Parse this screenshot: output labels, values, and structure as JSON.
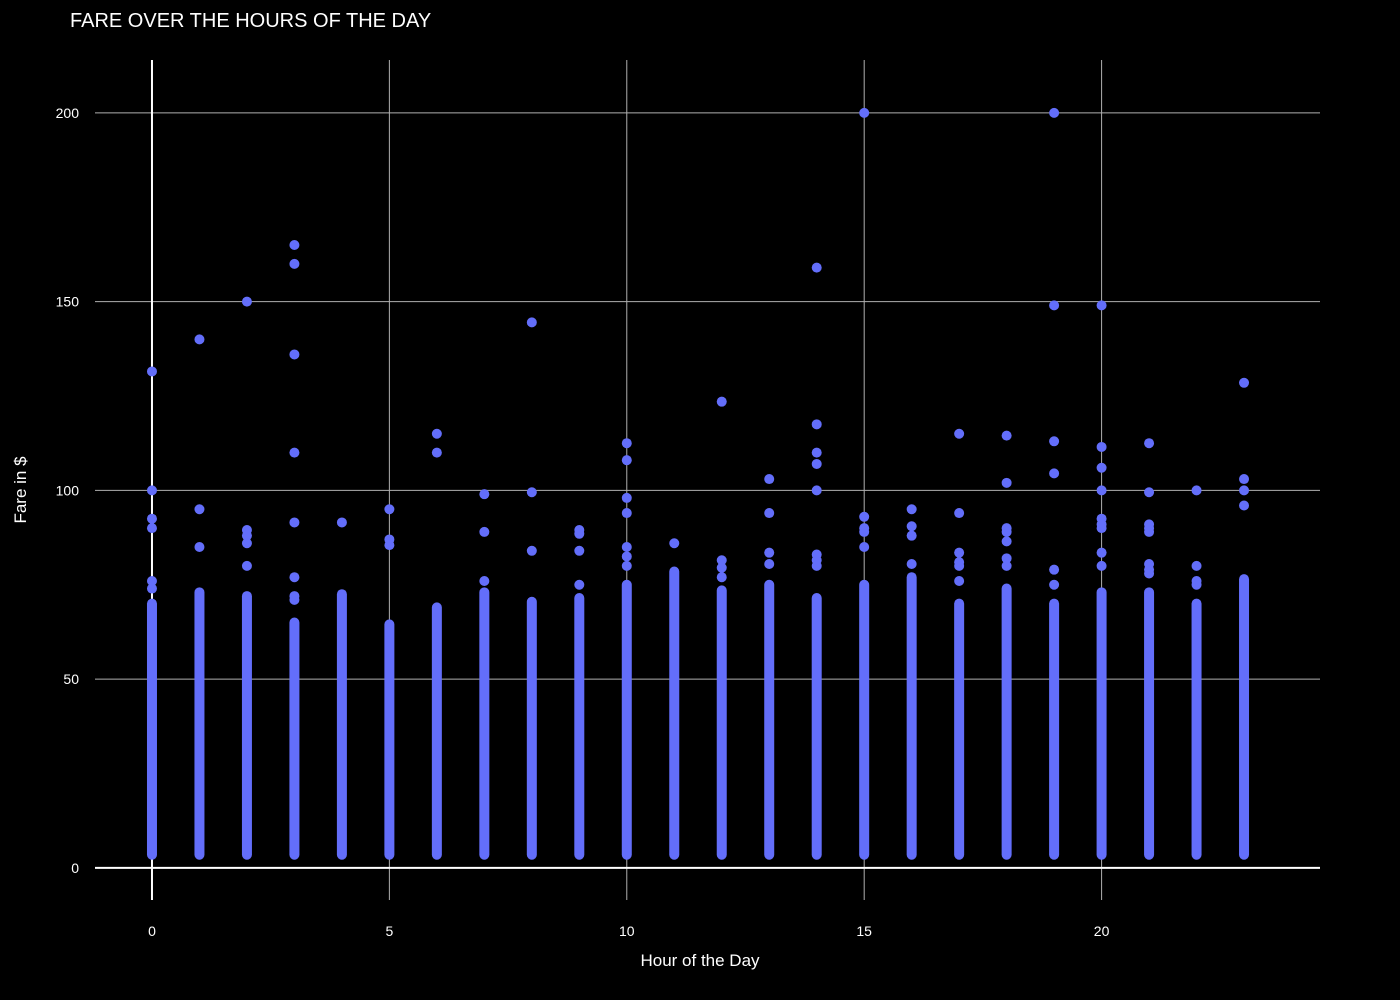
{
  "chart_data": {
    "type": "scatter",
    "title": "FARE OVER THE HOURS OF THE DAY",
    "xlabel": "Hour of the Day",
    "ylabel": "Fare in $",
    "xlim": [
      -1.2,
      24.6
    ],
    "ylim": [
      -8.5,
      214
    ],
    "xticks": [
      0,
      5,
      10,
      15,
      20
    ],
    "yticks": [
      0,
      50,
      100,
      150,
      200
    ],
    "grid": true,
    "marker_color": "#636efa",
    "background_color": "#000000",
    "grid_color": "#b0b0b0",
    "series": [
      {
        "hours": [
          {
            "x": 0,
            "max_dense": 70,
            "outliers": [
              131.5,
              100,
              92.5,
              90,
              76,
              74
            ]
          },
          {
            "x": 1,
            "max_dense": 73,
            "outliers": [
              140,
              95,
              85
            ]
          },
          {
            "x": 2,
            "max_dense": 72,
            "outliers": [
              150,
              89.5,
              88,
              86,
              80
            ]
          },
          {
            "x": 3,
            "max_dense": 65,
            "outliers": [
              165,
              160,
              136,
              110,
              91.5,
              77,
              72,
              71
            ]
          },
          {
            "x": 4,
            "max_dense": 72.5,
            "outliers": [
              91.5
            ]
          },
          {
            "x": 5,
            "max_dense": 64.5,
            "outliers": [
              95,
              87,
              85.5
            ]
          },
          {
            "x": 6,
            "max_dense": 69,
            "outliers": [
              115,
              110
            ]
          },
          {
            "x": 7,
            "max_dense": 73,
            "outliers": [
              99,
              89,
              76
            ]
          },
          {
            "x": 8,
            "max_dense": 70.5,
            "outliers": [
              144.5,
              99.5,
              84
            ]
          },
          {
            "x": 9,
            "max_dense": 71.5,
            "outliers": [
              89.5,
              88.5,
              84,
              75
            ]
          },
          {
            "x": 10,
            "max_dense": 75,
            "outliers": [
              112.5,
              108,
              98,
              94,
              85,
              82.5,
              80
            ]
          },
          {
            "x": 11,
            "max_dense": 78.5,
            "outliers": [
              86
            ]
          },
          {
            "x": 12,
            "max_dense": 73.5,
            "outliers": [
              123.5,
              81.5,
              79.5,
              77
            ]
          },
          {
            "x": 13,
            "max_dense": 75,
            "outliers": [
              103,
              94,
              83.5,
              80.5
            ]
          },
          {
            "x": 14,
            "max_dense": 71.5,
            "outliers": [
              159,
              117.5,
              110,
              107,
              100,
              83,
              81.5,
              80
            ]
          },
          {
            "x": 15,
            "max_dense": 75,
            "outliers": [
              200,
              93,
              90,
              89,
              85
            ]
          },
          {
            "x": 16,
            "max_dense": 77,
            "outliers": [
              95,
              90.5,
              88,
              80.5
            ]
          },
          {
            "x": 17,
            "max_dense": 70,
            "outliers": [
              115,
              94,
              83.5,
              81,
              80,
              76
            ]
          },
          {
            "x": 18,
            "max_dense": 74,
            "outliers": [
              114.5,
              102,
              90,
              89,
              86.5,
              82,
              80
            ]
          },
          {
            "x": 19,
            "max_dense": 70,
            "outliers": [
              200,
              149,
              113,
              104.5,
              79,
              75
            ]
          },
          {
            "x": 20,
            "max_dense": 73,
            "outliers": [
              149,
              111.5,
              106,
              100,
              92.5,
              91,
              90,
              83.5,
              80
            ]
          },
          {
            "x": 21,
            "max_dense": 73,
            "outliers": [
              112.5,
              99.5,
              91,
              90,
              89,
              80.5,
              79,
              78
            ]
          },
          {
            "x": 22,
            "max_dense": 70,
            "outliers": [
              100,
              80,
              76,
              75
            ]
          },
          {
            "x": 23,
            "max_dense": 76.5,
            "outliers": [
              128.5,
              103,
              100,
              96
            ]
          }
        ],
        "min_fare": 3.5
      }
    ]
  }
}
